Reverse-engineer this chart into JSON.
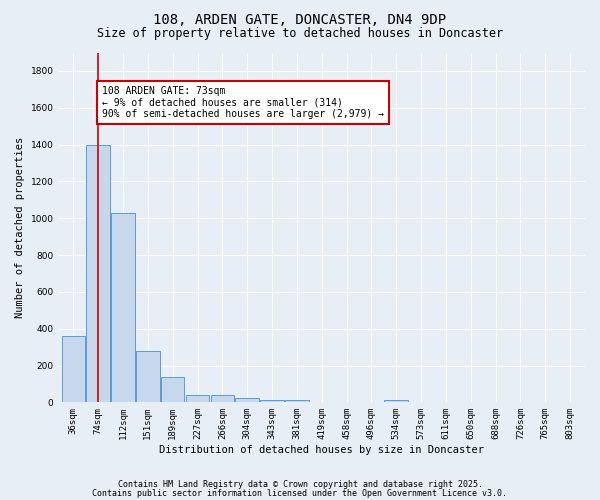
{
  "title1": "108, ARDEN GATE, DONCASTER, DN4 9DP",
  "title2": "Size of property relative to detached houses in Doncaster",
  "xlabel": "Distribution of detached houses by size in Doncaster",
  "ylabel": "Number of detached properties",
  "bar_labels": [
    "36sqm",
    "74sqm",
    "112sqm",
    "151sqm",
    "189sqm",
    "227sqm",
    "266sqm",
    "304sqm",
    "343sqm",
    "381sqm",
    "419sqm",
    "458sqm",
    "496sqm",
    "534sqm",
    "573sqm",
    "611sqm",
    "650sqm",
    "688sqm",
    "726sqm",
    "765sqm",
    "803sqm"
  ],
  "bar_values": [
    360,
    1400,
    1030,
    280,
    135,
    40,
    40,
    25,
    15,
    10,
    0,
    0,
    0,
    10,
    0,
    0,
    0,
    0,
    0,
    0,
    0
  ],
  "bar_color": "#c8d8ec",
  "bar_edge_color": "#5b9bd5",
  "bg_color": "#e8eef5",
  "grid_color": "#ffffff",
  "vline_x": 1.0,
  "vline_color": "#cc0000",
  "annotation_text": "108 ARDEN GATE: 73sqm\n← 9% of detached houses are smaller (314)\n90% of semi-detached houses are larger (2,979) →",
  "annotation_box_color": "#ffffff",
  "annotation_box_edge": "#cc0000",
  "ylim": [
    0,
    1900
  ],
  "yticks": [
    0,
    200,
    400,
    600,
    800,
    1000,
    1200,
    1400,
    1600,
    1800
  ],
  "footer1": "Contains HM Land Registry data © Crown copyright and database right 2025.",
  "footer2": "Contains public sector information licensed under the Open Government Licence v3.0.",
  "title_fontsize": 10,
  "subtitle_fontsize": 8.5,
  "axis_label_fontsize": 7.5,
  "tick_fontsize": 6.5,
  "annotation_fontsize": 7,
  "footer_fontsize": 6
}
